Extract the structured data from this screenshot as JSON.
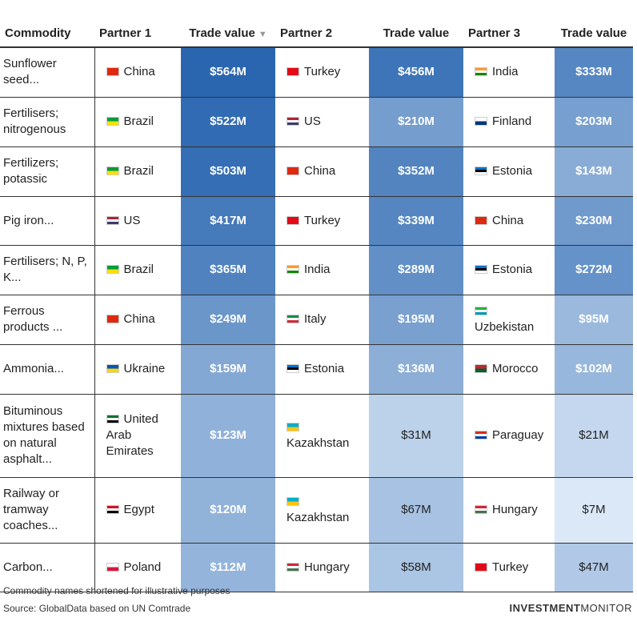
{
  "headers": {
    "commodity": "Commodity",
    "partner1": "Partner 1",
    "value1": "Trade value",
    "partner2": "Partner 2",
    "value2": "Trade value",
    "partner3": "Partner 3",
    "value3": "Trade value",
    "sort_icon": "sort-down-icon"
  },
  "chart_data": {
    "type": "table",
    "unit": "USD millions",
    "columns": [
      "Commodity",
      "Partner 1",
      "Trade value",
      "Partner 2",
      "Trade value",
      "Partner 3",
      "Trade value"
    ],
    "rows": [
      {
        "commodity": "Sunflower seed...",
        "p1": "China",
        "v1": 564,
        "v1_label": "$564M",
        "p2": "Turkey",
        "v2": 456,
        "v2_label": "$456M",
        "p3": "India",
        "v3": 333,
        "v3_label": "$333M"
      },
      {
        "commodity": "Fertilisers; nitrogenous",
        "p1": "Brazil",
        "v1": 522,
        "v1_label": "$522M",
        "p2": "US",
        "v2": 210,
        "v2_label": "$210M",
        "p3": "Finland",
        "v3": 203,
        "v3_label": "$203M"
      },
      {
        "commodity": "Fertilizers; potassic",
        "p1": "Brazil",
        "v1": 503,
        "v1_label": "$503M",
        "p2": "China",
        "v2": 352,
        "v2_label": "$352M",
        "p3": "Estonia",
        "v3": 143,
        "v3_label": "$143M"
      },
      {
        "commodity": "Pig iron...",
        "p1": "US",
        "v1": 417,
        "v1_label": "$417M",
        "p2": "Turkey",
        "v2": 339,
        "v2_label": "$339M",
        "p3": "China",
        "v3": 230,
        "v3_label": "$230M"
      },
      {
        "commodity": "Fertilisers; N, P, K...",
        "p1": "Brazil",
        "v1": 365,
        "v1_label": "$365M",
        "p2": "India",
        "v2": 289,
        "v2_label": "$289M",
        "p3": "Estonia",
        "v3": 272,
        "v3_label": "$272M"
      },
      {
        "commodity": "Ferrous products ...",
        "p1": "China",
        "v1": 249,
        "v1_label": "$249M",
        "p2": "Italy",
        "v2": 195,
        "v2_label": "$195M",
        "p3": "Uzbekistan",
        "v3": 95,
        "v3_label": "$95M"
      },
      {
        "commodity": "Ammonia...",
        "p1": "Ukraine",
        "v1": 159,
        "v1_label": "$159M",
        "p2": "Estonia",
        "v2": 136,
        "v2_label": "$136M",
        "p3": "Morocco",
        "v3": 102,
        "v3_label": "$102M"
      },
      {
        "commodity": "Bituminous mixtures based on natural asphalt...",
        "p1": "United Arab Emirates",
        "v1": 123,
        "v1_label": "$123M",
        "p2": "Kazakhstan",
        "v2": 31,
        "v2_label": "$31M",
        "p3": "Paraguay",
        "v3": 21,
        "v3_label": "$21M"
      },
      {
        "commodity": "Railway or tramway coaches...",
        "p1": "Egypt",
        "v1": 120,
        "v1_label": "$120M",
        "p2": "Kazakhstan",
        "v2": 67,
        "v2_label": "$67M",
        "p3": "Hungary",
        "v3": 7,
        "v3_label": "$7M"
      },
      {
        "commodity": "Carbon...",
        "p1": "Poland",
        "v1": 112,
        "v1_label": "$112M",
        "p2": "Hungary",
        "v2": 58,
        "v2_label": "$58M",
        "p3": "Turkey",
        "v3": 47,
        "v3_label": "$47M"
      }
    ]
  },
  "flags": {
    "China": {
      "icon": "china-flag-icon",
      "colors": [
        "#de2910",
        "#de2910"
      ]
    },
    "Turkey": {
      "icon": "turkey-flag-icon",
      "colors": [
        "#e30a17",
        "#e30a17"
      ]
    },
    "India": {
      "icon": "india-flag-icon",
      "colors": [
        "#ff9933",
        "#ffffff",
        "#138808"
      ]
    },
    "Brazil": {
      "icon": "brazil-flag-icon",
      "colors": [
        "#009c3b",
        "#ffdf00"
      ]
    },
    "US": {
      "icon": "us-flag-icon",
      "colors": [
        "#b22234",
        "#ffffff",
        "#3c3b6e"
      ]
    },
    "Finland": {
      "icon": "finland-flag-icon",
      "colors": [
        "#ffffff",
        "#003580"
      ]
    },
    "Estonia": {
      "icon": "estonia-flag-icon",
      "colors": [
        "#0072ce",
        "#000000",
        "#ffffff"
      ]
    },
    "Italy": {
      "icon": "italy-flag-icon",
      "colors": [
        "#009246",
        "#ffffff",
        "#ce2b37"
      ]
    },
    "Uzbekistan": {
      "icon": "uzbekistan-flag-icon",
      "colors": [
        "#1eb53a",
        "#ffffff",
        "#0099b5"
      ]
    },
    "Ukraine": {
      "icon": "ukraine-flag-icon",
      "colors": [
        "#0057b7",
        "#ffd700"
      ]
    },
    "Morocco": {
      "icon": "morocco-flag-icon",
      "colors": [
        "#c1272d",
        "#006233"
      ]
    },
    "United Arab Emirates": {
      "icon": "uae-flag-icon",
      "colors": [
        "#00732f",
        "#ffffff",
        "#000000",
        "#ff0000"
      ]
    },
    "Kazakhstan": {
      "icon": "kazakhstan-flag-icon",
      "colors": [
        "#00afca",
        "#fec50c"
      ]
    },
    "Paraguay": {
      "icon": "paraguay-flag-icon",
      "colors": [
        "#d52b1e",
        "#ffffff",
        "#0038a8"
      ]
    },
    "Egypt": {
      "icon": "egypt-flag-icon",
      "colors": [
        "#ce1126",
        "#ffffff",
        "#000000"
      ]
    },
    "Hungary": {
      "icon": "hungary-flag-icon",
      "colors": [
        "#ce2939",
        "#ffffff",
        "#477050"
      ]
    },
    "Poland": {
      "icon": "poland-flag-icon",
      "colors": [
        "#ffffff",
        "#dc143c"
      ]
    }
  },
  "color_scale": {
    "min": 7,
    "max": 564,
    "light": "#dbe8f7",
    "dark": "#2a66b0"
  },
  "footnote": "Commodity names shortened for illustrative purposes",
  "source": "Source: GlobalData based on UN Comtrade",
  "brand": {
    "part1": "INVESTMENT",
    "part2": "MONITOR"
  }
}
